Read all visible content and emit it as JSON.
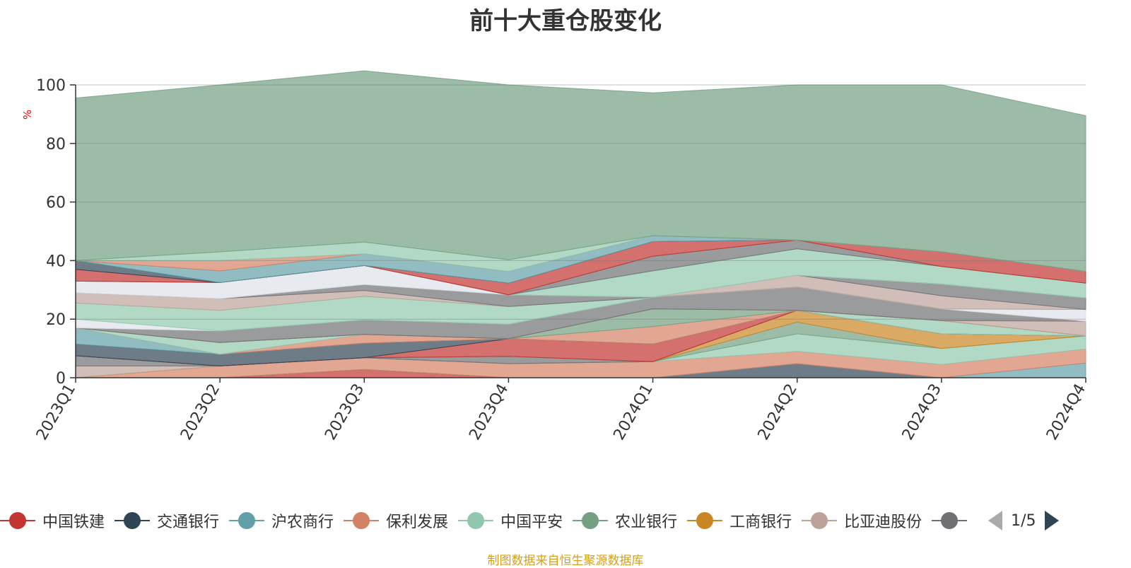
{
  "chart_data": {
    "type": "area",
    "title": "前十大重仓股变化",
    "ylabel": "%",
    "ylim": [
      0,
      100
    ],
    "yticks": [
      0,
      20,
      40,
      60,
      80,
      100
    ],
    "categories": [
      "2023Q1",
      "2023Q2",
      "2023Q3",
      "2023Q4",
      "2024Q1",
      "2024Q2",
      "2024Q3",
      "2024Q4"
    ],
    "stacked": true,
    "grid": true,
    "legend_position": "bottom",
    "series": [
      {
        "name": "中国铁建",
        "color": "#c23531",
        "values": [
          0,
          0,
          2.8,
          0,
          0,
          0,
          0,
          0
        ]
      },
      {
        "name": "交通银行",
        "color": "#2f4554",
        "values": [
          0,
          0,
          0,
          0,
          0,
          4.8,
          0,
          0
        ]
      },
      {
        "name": "沪农商行",
        "color": "#61a0a8",
        "values": [
          0,
          0,
          0,
          0,
          0,
          0,
          0,
          5
        ]
      },
      {
        "name": "保利发展",
        "color": "#d48265",
        "values": [
          0,
          4,
          4,
          4.8,
          5.5,
          4.2,
          4.5,
          4.8
        ]
      },
      {
        "name": "中国平安",
        "color": "#91c7ae",
        "values": [
          0,
          0,
          0,
          0,
          0,
          6,
          5.5,
          4.5
        ]
      },
      {
        "name": "农业银行",
        "color": "#749f83",
        "values": [
          0,
          0,
          0,
          0,
          0,
          4,
          0,
          0
        ]
      },
      {
        "name": "工商银行",
        "color": "#ca8622",
        "values": [
          0,
          0,
          0,
          0,
          0,
          4,
          5,
          0
        ]
      },
      {
        "name": "比亚迪股份",
        "color": "#bda29a",
        "values": [
          4,
          0,
          0,
          0,
          0,
          0,
          0,
          0
        ]
      },
      {
        "name": "",
        "color": "#6e7074",
        "values": [
          3.5,
          0,
          0,
          2.5,
          0,
          0,
          0,
          0
        ]
      },
      {
        "name": "",
        "color": "#c23531",
        "values": [
          0,
          0,
          0,
          6,
          6,
          0,
          0,
          0
        ]
      },
      {
        "name": "",
        "color": "#2f4554",
        "values": [
          4,
          4,
          5,
          0,
          0,
          0,
          0,
          0
        ]
      },
      {
        "name": "",
        "color": "#61a0a8",
        "values": [
          5.5,
          0,
          0,
          0,
          0,
          0,
          0,
          0
        ]
      },
      {
        "name": "",
        "color": "#d48265",
        "values": [
          0,
          0,
          3,
          0,
          6,
          0,
          0,
          0
        ]
      },
      {
        "name": "",
        "color": "#91c7ae",
        "values": [
          0,
          4,
          0,
          0,
          0,
          0,
          4.5,
          0
        ]
      },
      {
        "name": "",
        "color": "#749f83",
        "values": [
          0,
          0,
          0,
          0,
          6,
          0,
          0,
          0
        ]
      },
      {
        "name": "",
        "color": "#ca8622",
        "values": [
          0,
          0,
          0,
          0,
          0,
          0,
          0,
          0
        ]
      },
      {
        "name": "",
        "color": "#bda29a",
        "values": [
          0,
          0,
          0,
          0,
          0,
          0,
          0,
          5
        ]
      },
      {
        "name": "",
        "color": "#6e7074",
        "values": [
          0,
          4,
          5,
          5,
          4,
          8,
          4,
          0
        ]
      },
      {
        "name": "",
        "color": "#dde2e8",
        "values": [
          3,
          0,
          0,
          0,
          0,
          0,
          0,
          4
        ]
      },
      {
        "name": "",
        "color": "#91c7ae",
        "values": [
          5.5,
          7,
          8,
          6,
          0,
          0,
          0,
          0
        ]
      },
      {
        "name": "",
        "color": "#bda29a",
        "values": [
          3.5,
          4,
          2,
          0,
          0,
          4,
          4.5,
          0
        ]
      },
      {
        "name": "",
        "color": "#6e7074",
        "values": [
          0,
          0,
          2,
          4,
          0,
          0,
          4,
          4
        ]
      },
      {
        "name": "",
        "color": "#dde2e8",
        "values": [
          4,
          5.5,
          6.5,
          0,
          0,
          0,
          0,
          0
        ]
      },
      {
        "name": "",
        "color": "#91c7ae",
        "values": [
          0,
          0,
          0,
          0,
          9,
          9,
          6,
          5
        ]
      },
      {
        "name": "",
        "color": "#6e7074",
        "values": [
          0,
          0,
          0,
          0,
          5,
          3,
          0,
          0
        ]
      },
      {
        "name": "",
        "color": "#c23531",
        "values": [
          4,
          0,
          0,
          4,
          5,
          0,
          5,
          4
        ]
      },
      {
        "name": "",
        "color": "#2f4554",
        "values": [
          3,
          0,
          0,
          0,
          0,
          0,
          0,
          0
        ]
      },
      {
        "name": "",
        "color": "#61a0a8",
        "values": [
          0,
          4,
          4,
          4,
          2,
          0,
          0,
          0
        ]
      },
      {
        "name": "",
        "color": "#d48265",
        "values": [
          0,
          3.5,
          0,
          0,
          0,
          0,
          0,
          0
        ]
      },
      {
        "name": "",
        "color": "#91c7ae",
        "values": [
          0,
          3,
          4,
          4,
          0,
          0,
          0,
          0
        ]
      },
      {
        "name": "",
        "color": "#749f83",
        "values": [
          55.5,
          57,
          58.5,
          59.7,
          48.8,
          53,
          57,
          53.2
        ]
      }
    ]
  },
  "legend": {
    "items": [
      {
        "name": "中国铁建",
        "color": "#c23531"
      },
      {
        "name": "交通银行",
        "color": "#2f4554"
      },
      {
        "name": "沪农商行",
        "color": "#61a0a8"
      },
      {
        "name": "保利发展",
        "color": "#d48265"
      },
      {
        "name": "中国平安",
        "color": "#91c7ae"
      },
      {
        "name": "农业银行",
        "color": "#749f83"
      },
      {
        "name": "工商银行",
        "color": "#ca8622"
      },
      {
        "name": "比亚迪股份",
        "color": "#bda29a"
      },
      {
        "name": "",
        "color": "#6e7074"
      }
    ],
    "page_label": "1/5"
  },
  "source_note": "制图数据来自恒生聚源数据库"
}
